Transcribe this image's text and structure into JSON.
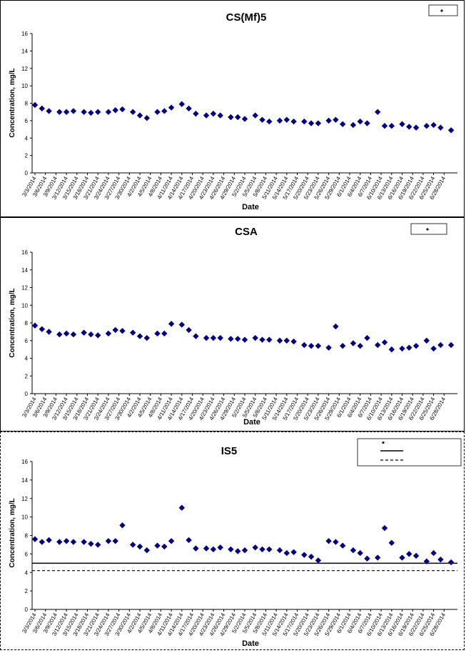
{
  "chart_data": [
    {
      "type": "scatter",
      "title": "CS(Mf)5",
      "xlabel": "Date",
      "ylabel": "Concentration, mg/L",
      "ylim": [
        0,
        16
      ],
      "yticks": [
        "0",
        "2",
        "4",
        "6",
        "8",
        "10",
        "12",
        "14",
        "16"
      ],
      "xticks": [
        "3/3/2014",
        "3/6/2014",
        "3/9/2014",
        "3/12/2014",
        "3/15/2014",
        "3/18/2014",
        "3/21/2014",
        "3/24/2014",
        "3/27/2014",
        "3/30/2014",
        "4/2/2014",
        "4/5/2014",
        "4/8/2014",
        "4/11/2014",
        "4/14/2014",
        "4/17/2014",
        "4/20/2014",
        "4/23/2014",
        "4/26/2014",
        "4/29/2014",
        "5/2/2014",
        "5/5/2014",
        "5/8/2014",
        "5/11/2014",
        "5/14/2014",
        "5/17/2014",
        "5/20/2014",
        "5/23/2014",
        "5/26/2014",
        "5/29/2014",
        "6/1/2014",
        "6/4/2014",
        "6/7/2014",
        "6/10/2014",
        "6/13/2014",
        "6/16/2014",
        "6/19/2014",
        "6/22/2014",
        "6/25/2014",
        "6/28/2014"
      ],
      "legend": "top-right",
      "series": [
        {
          "marker": "diamond",
          "color": "#000080",
          "points": [
            [
              "3/3/2014",
              7.8
            ],
            [
              "3/5/2014",
              7.4
            ],
            [
              "3/7/2014",
              7.1
            ],
            [
              "3/10/2014",
              7.0
            ],
            [
              "3/12/2014",
              7.0
            ],
            [
              "3/14/2014",
              7.1
            ],
            [
              "3/17/2014",
              7.0
            ],
            [
              "3/19/2014",
              6.9
            ],
            [
              "3/21/2014",
              7.0
            ],
            [
              "3/24/2014",
              7.0
            ],
            [
              "3/26/2014",
              7.2
            ],
            [
              "3/28/2014",
              7.3
            ],
            [
              "3/31/2014",
              7.0
            ],
            [
              "4/2/2014",
              6.6
            ],
            [
              "4/4/2014",
              6.3
            ],
            [
              "4/7/2014",
              7.0
            ],
            [
              "4/9/2014",
              7.1
            ],
            [
              "4/11/2014",
              7.5
            ],
            [
              "4/14/2014",
              7.9
            ],
            [
              "4/16/2014",
              7.4
            ],
            [
              "4/18/2014",
              6.8
            ],
            [
              "4/21/2014",
              6.6
            ],
            [
              "4/23/2014",
              6.8
            ],
            [
              "4/25/2014",
              6.6
            ],
            [
              "4/28/2014",
              6.4
            ],
            [
              "4/30/2014",
              6.4
            ],
            [
              "5/2/2014",
              6.2
            ],
            [
              "5/5/2014",
              6.6
            ],
            [
              "5/7/2014",
              6.1
            ],
            [
              "5/9/2014",
              5.9
            ],
            [
              "5/12/2014",
              6.0
            ],
            [
              "5/14/2014",
              6.1
            ],
            [
              "5/16/2014",
              5.9
            ],
            [
              "5/19/2014",
              5.9
            ],
            [
              "5/21/2014",
              5.7
            ],
            [
              "5/23/2014",
              5.7
            ],
            [
              "5/26/2014",
              6.0
            ],
            [
              "5/28/2014",
              6.1
            ],
            [
              "5/30/2014",
              5.6
            ],
            [
              "6/2/2014",
              5.5
            ],
            [
              "6/4/2014",
              5.9
            ],
            [
              "6/6/2014",
              5.7
            ],
            [
              "6/9/2014",
              7.0
            ],
            [
              "6/11/2014",
              5.4
            ],
            [
              "6/13/2014",
              5.4
            ],
            [
              "6/16/2014",
              5.6
            ],
            [
              "6/18/2014",
              5.3
            ],
            [
              "6/20/2014",
              5.2
            ],
            [
              "6/23/2014",
              5.4
            ],
            [
              "6/25/2014",
              5.5
            ],
            [
              "6/27/2014",
              5.2
            ],
            [
              "6/30/2014",
              4.9
            ]
          ]
        }
      ]
    },
    {
      "type": "scatter",
      "title": "CSA",
      "xlabel": "Date",
      "ylabel": "Concentration, mg/L",
      "ylim": [
        0,
        16
      ],
      "yticks": [
        "0",
        "2",
        "4",
        "6",
        "8",
        "10",
        "12",
        "14",
        "16"
      ],
      "xticks": [
        "3/3/2014",
        "3/6/2014",
        "3/9/2014",
        "3/12/2014",
        "3/15/2014",
        "3/18/2014",
        "3/21/2014",
        "3/24/2014",
        "3/27/2014",
        "3/30/2014",
        "4/2/2014",
        "4/5/2014",
        "4/8/2014",
        "4/11/2014",
        "4/14/2014",
        "4/17/2014",
        "4/20/2014",
        "4/23/2014",
        "4/26/2014",
        "4/29/2014",
        "5/2/2014",
        "5/5/2014",
        "5/8/2014",
        "5/11/2014",
        "5/14/2014",
        "5/17/2014",
        "5/20/2014",
        "5/23/2014",
        "5/26/2014",
        "5/29/2014",
        "6/1/2014",
        "6/4/2014",
        "6/7/2014",
        "6/10/2014",
        "6/13/2014",
        "6/16/2014",
        "6/19/2014",
        "6/22/2014",
        "6/25/2014",
        "6/28/2014"
      ],
      "legend": "top-right",
      "series": [
        {
          "marker": "diamond",
          "color": "#000080",
          "points": [
            [
              "3/3/2014",
              7.7
            ],
            [
              "3/5/2014",
              7.3
            ],
            [
              "3/7/2014",
              7.0
            ],
            [
              "3/10/2014",
              6.7
            ],
            [
              "3/12/2014",
              6.8
            ],
            [
              "3/14/2014",
              6.7
            ],
            [
              "3/17/2014",
              6.9
            ],
            [
              "3/19/2014",
              6.7
            ],
            [
              "3/21/2014",
              6.6
            ],
            [
              "3/24/2014",
              6.8
            ],
            [
              "3/26/2014",
              7.2
            ],
            [
              "3/28/2014",
              7.1
            ],
            [
              "3/31/2014",
              6.9
            ],
            [
              "4/2/2014",
              6.5
            ],
            [
              "4/4/2014",
              6.3
            ],
            [
              "4/7/2014",
              6.8
            ],
            [
              "4/9/2014",
              6.8
            ],
            [
              "4/11/2014",
              7.9
            ],
            [
              "4/14/2014",
              7.8
            ],
            [
              "4/16/2014",
              7.2
            ],
            [
              "4/18/2014",
              6.5
            ],
            [
              "4/21/2014",
              6.3
            ],
            [
              "4/23/2014",
              6.3
            ],
            [
              "4/25/2014",
              6.3
            ],
            [
              "4/28/2014",
              6.2
            ],
            [
              "4/30/2014",
              6.2
            ],
            [
              "5/2/2014",
              6.1
            ],
            [
              "5/5/2014",
              6.3
            ],
            [
              "5/7/2014",
              6.1
            ],
            [
              "5/9/2014",
              6.1
            ],
            [
              "5/12/2014",
              6.0
            ],
            [
              "5/14/2014",
              6.0
            ],
            [
              "5/16/2014",
              5.9
            ],
            [
              "5/19/2014",
              5.5
            ],
            [
              "5/21/2014",
              5.4
            ],
            [
              "5/23/2014",
              5.4
            ],
            [
              "5/26/2014",
              5.2
            ],
            [
              "5/28/2014",
              7.6
            ],
            [
              "5/30/2014",
              5.4
            ],
            [
              "6/2/2014",
              5.7
            ],
            [
              "6/4/2014",
              5.4
            ],
            [
              "6/6/2014",
              6.3
            ],
            [
              "6/9/2014",
              5.5
            ],
            [
              "6/11/2014",
              5.8
            ],
            [
              "6/13/2014",
              5.0
            ],
            [
              "6/16/2014",
              5.1
            ],
            [
              "6/18/2014",
              5.2
            ],
            [
              "6/20/2014",
              5.4
            ],
            [
              "6/23/2014",
              6.0
            ],
            [
              "6/25/2014",
              5.1
            ],
            [
              "6/27/2014",
              5.5
            ],
            [
              "6/30/2014",
              5.5
            ]
          ]
        }
      ]
    },
    {
      "type": "scatter",
      "title": "IS5",
      "xlabel": "Date",
      "ylabel": "Concentration, mg/L",
      "ylim": [
        0,
        16
      ],
      "yticks": [
        "0",
        "2",
        "4",
        "6",
        "8",
        "10",
        "12",
        "14",
        "16"
      ],
      "xticks": [
        "3/3/2014",
        "3/6/2014",
        "3/9/2014",
        "3/12/2014",
        "3/15/2014",
        "3/18/2014",
        "3/21/2014",
        "3/24/2014",
        "3/27/2014",
        "3/30/2014",
        "4/2/2014",
        "4/5/2014",
        "4/8/2014",
        "4/11/2014",
        "4/14/2014",
        "4/17/2014",
        "4/20/2014",
        "4/23/2014",
        "4/26/2014",
        "4/29/2014",
        "5/2/2014",
        "5/5/2014",
        "5/8/2014",
        "5/11/2014",
        "5/14/2014",
        "5/17/2014",
        "5/20/2014",
        "5/23/2014",
        "5/26/2014",
        "5/29/2014",
        "6/1/2014",
        "6/4/2014",
        "6/7/2014",
        "6/10/2014",
        "6/13/2014",
        "6/16/2014",
        "6/19/2014",
        "6/22/2014",
        "6/25/2014",
        "6/28/2014"
      ],
      "legend": "top-right",
      "reference_lines": [
        {
          "value": 5.0,
          "style": "solid"
        },
        {
          "value": 4.2,
          "style": "dashed"
        }
      ],
      "series": [
        {
          "marker": "diamond",
          "color": "#000080",
          "points": [
            [
              "3/3/2014",
              7.6
            ],
            [
              "3/5/2014",
              7.3
            ],
            [
              "3/7/2014",
              7.5
            ],
            [
              "3/10/2014",
              7.3
            ],
            [
              "3/12/2014",
              7.4
            ],
            [
              "3/14/2014",
              7.3
            ],
            [
              "3/17/2014",
              7.3
            ],
            [
              "3/19/2014",
              7.1
            ],
            [
              "3/21/2014",
              7.0
            ],
            [
              "3/24/2014",
              7.4
            ],
            [
              "3/26/2014",
              7.4
            ],
            [
              "3/28/2014",
              9.1
            ],
            [
              "3/31/2014",
              7.0
            ],
            [
              "4/2/2014",
              6.8
            ],
            [
              "4/4/2014",
              6.4
            ],
            [
              "4/7/2014",
              6.9
            ],
            [
              "4/9/2014",
              6.8
            ],
            [
              "4/11/2014",
              7.4
            ],
            [
              "4/14/2014",
              11.0
            ],
            [
              "4/16/2014",
              7.5
            ],
            [
              "4/18/2014",
              6.6
            ],
            [
              "4/21/2014",
              6.6
            ],
            [
              "4/23/2014",
              6.5
            ],
            [
              "4/25/2014",
              6.7
            ],
            [
              "4/28/2014",
              6.5
            ],
            [
              "4/30/2014",
              6.3
            ],
            [
              "5/2/2014",
              6.4
            ],
            [
              "5/5/2014",
              6.7
            ],
            [
              "5/7/2014",
              6.5
            ],
            [
              "5/9/2014",
              6.5
            ],
            [
              "5/12/2014",
              6.4
            ],
            [
              "5/14/2014",
              6.1
            ],
            [
              "5/16/2014",
              6.2
            ],
            [
              "5/19/2014",
              5.9
            ],
            [
              "5/21/2014",
              5.7
            ],
            [
              "5/23/2014",
              5.3
            ],
            [
              "5/26/2014",
              7.4
            ],
            [
              "5/28/2014",
              7.3
            ],
            [
              "5/30/2014",
              6.9
            ],
            [
              "6/2/2014",
              6.4
            ],
            [
              "6/4/2014",
              6.1
            ],
            [
              "6/6/2014",
              5.5
            ],
            [
              "6/9/2014",
              5.6
            ],
            [
              "6/11/2014",
              8.8
            ],
            [
              "6/13/2014",
              7.2
            ],
            [
              "6/16/2014",
              5.6
            ],
            [
              "6/18/2014",
              6.0
            ],
            [
              "6/20/2014",
              5.8
            ],
            [
              "6/23/2014",
              5.2
            ],
            [
              "6/25/2014",
              6.1
            ],
            [
              "6/27/2014",
              5.4
            ],
            [
              "6/30/2014",
              5.1
            ]
          ]
        }
      ]
    }
  ]
}
